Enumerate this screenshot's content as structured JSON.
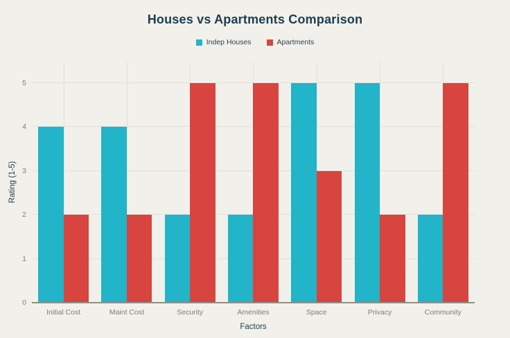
{
  "chart_data": {
    "type": "bar",
    "title": "Houses vs Apartments Comparison",
    "categories": [
      "Initial Cost",
      "Maint Cost",
      "Security",
      "Amenities",
      "Space",
      "Privacy",
      "Community"
    ],
    "series": [
      {
        "name": "Indep Houses",
        "color": "#22b4c8",
        "values": [
          4,
          4,
          2,
          2,
          5,
          5,
          2
        ]
      },
      {
        "name": "Apartments",
        "color": "#d8443f",
        "values": [
          2,
          2,
          5,
          5,
          3,
          2,
          5
        ]
      }
    ],
    "xlabel": "Factors",
    "ylabel": "Rating (1-5)",
    "yticks": [
      0,
      1,
      2,
      3,
      4,
      5
    ],
    "ylim": [
      0,
      5.47
    ],
    "grid": true,
    "legend_position": "top"
  },
  "colors": {
    "background": "#f1f0ea",
    "houses_series": "#22b4c8",
    "apartments_series": "#d8443f",
    "gridline": "#e2e0d8",
    "axis_line": "#8f8e88",
    "dark_text": "#1d3d4e",
    "tick_text": "#7d7c77"
  }
}
